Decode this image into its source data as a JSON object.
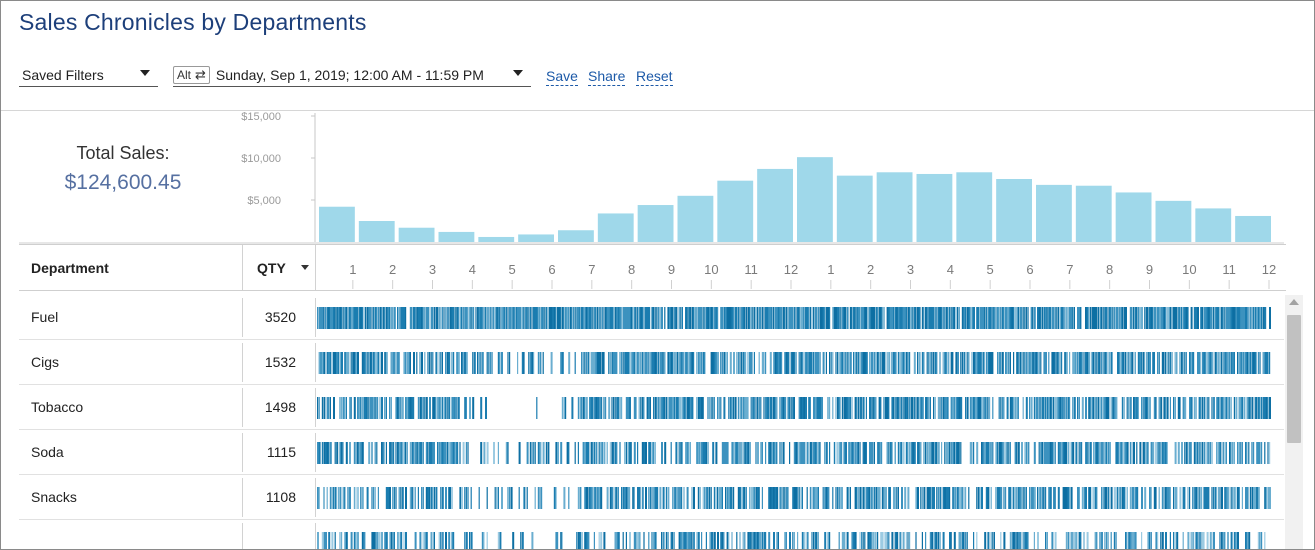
{
  "page": {
    "title": "Sales Chronicles by Departments"
  },
  "filters": {
    "saved_filters_label": "Saved Filters",
    "alt_label": "Alt",
    "date_range": "Sunday, Sep 1, 2019; 12:00 AM - 11:59 PM"
  },
  "actions": {
    "save": "Save",
    "share": "Share",
    "reset": "Reset"
  },
  "summary": {
    "label": "Total Sales:",
    "value": "$124,600.45"
  },
  "colors": {
    "bar": "#9fd8ea",
    "heat_dark": "#0d6fa3",
    "title": "#1d3f7a",
    "link": "#1d5aa8"
  },
  "chart_data": {
    "type": "bar",
    "categories": [
      "1",
      "2",
      "3",
      "4",
      "5",
      "6",
      "7",
      "8",
      "9",
      "10",
      "11",
      "12",
      "1",
      "2",
      "3",
      "4",
      "5",
      "6",
      "7",
      "8",
      "9",
      "10",
      "11",
      "12"
    ],
    "values": [
      4200,
      2500,
      1700,
      1200,
      600,
      900,
      1400,
      3400,
      4400,
      5500,
      7300,
      8700,
      10100,
      7900,
      8300,
      8100,
      8300,
      7500,
      6800,
      6700,
      5900,
      4900,
      4000,
      3100
    ],
    "ylim": [
      0,
      15000
    ],
    "yticks": [
      5000,
      10000,
      15000
    ],
    "ytick_labels": [
      "$5,000",
      "$10,000",
      "$15,000"
    ],
    "title": "",
    "xlabel": "",
    "ylabel": ""
  },
  "table": {
    "headers": {
      "department": "Department",
      "qty": "QTY"
    },
    "rows": [
      {
        "department": "Fuel",
        "qty": "3520",
        "density": 0.95
      },
      {
        "department": "Cigs",
        "qty": "1532",
        "density": 0.8
      },
      {
        "department": "Tobacco",
        "qty": "1498",
        "density": 0.82
      },
      {
        "department": "Soda",
        "qty": "1115",
        "density": 0.7
      },
      {
        "department": "Snacks",
        "qty": "1108",
        "density": 0.7
      },
      {
        "department": "",
        "qty": "",
        "density": 0.55
      }
    ]
  }
}
